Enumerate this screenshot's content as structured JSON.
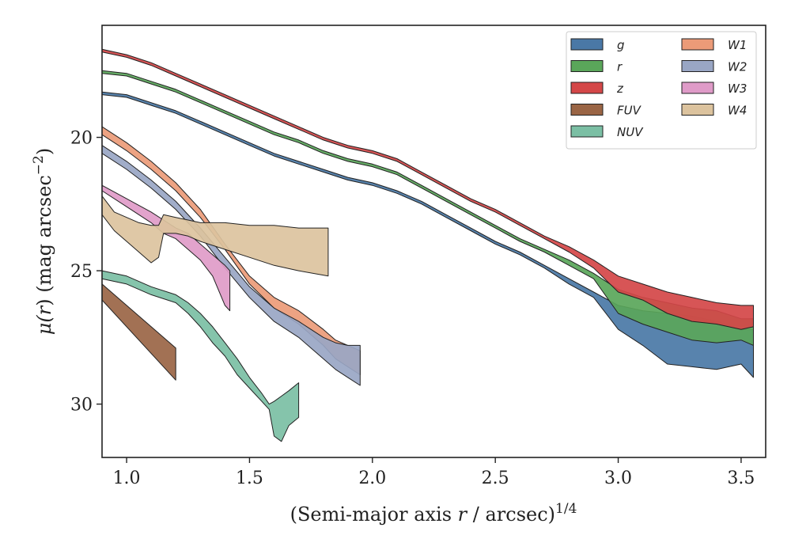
{
  "chart_data": {
    "type": "area",
    "xlabel_main": "(Semi-major axis ",
    "xlabel_var": "r",
    "xlabel_tail": " / arcsec)",
    "xlabel_sup": "1/4",
    "ylabel_main": "μ(",
    "ylabel_var": "r",
    "ylabel_tail": ") (mag arcsec",
    "ylabel_sup": "−2",
    "ylabel_close": ")",
    "xlim": [
      0.9,
      3.6
    ],
    "ylim": [
      32.0,
      15.8
    ],
    "y_inverted": true,
    "grid": false,
    "legend_position": "top-right",
    "legend_columns": 2,
    "xticks": [
      {
        "value": 1.0,
        "label": "1.0"
      },
      {
        "value": 1.5,
        "label": "1.5"
      },
      {
        "value": 2.0,
        "label": "2.0"
      },
      {
        "value": 2.5,
        "label": "2.5"
      },
      {
        "value": 3.0,
        "label": "3.0"
      },
      {
        "value": 3.5,
        "label": "3.5"
      }
    ],
    "yticks": [
      {
        "value": 20,
        "label": "20"
      },
      {
        "value": 25,
        "label": "25"
      },
      {
        "value": 30,
        "label": "30"
      }
    ],
    "series": [
      {
        "name": "FUV",
        "color": "#9a6545",
        "x": [
          0.9,
          1.2
        ],
        "lower": [
          25.5,
          27.9
        ],
        "upper": [
          26.1,
          29.1
        ]
      },
      {
        "name": "NUV",
        "color": "#7bbfa4",
        "x": [
          0.9,
          1.0,
          1.1,
          1.2,
          1.25,
          1.3,
          1.35,
          1.4,
          1.45,
          1.5,
          1.55,
          1.58,
          1.6,
          1.63,
          1.66,
          1.7
        ],
        "lower": [
          25.0,
          25.2,
          25.6,
          25.9,
          26.2,
          26.6,
          27.1,
          27.7,
          28.3,
          29.0,
          29.6,
          30.0,
          29.9,
          29.7,
          29.5,
          29.2
        ],
        "upper": [
          25.3,
          25.5,
          25.9,
          26.2,
          26.6,
          27.1,
          27.7,
          28.2,
          28.9,
          29.4,
          29.9,
          30.2,
          31.2,
          31.4,
          30.8,
          30.5
        ]
      },
      {
        "name": "W1",
        "color": "#eb9b78",
        "x": [
          0.9,
          1.0,
          1.1,
          1.2,
          1.3,
          1.4,
          1.5,
          1.6,
          1.7,
          1.8,
          1.85,
          1.9,
          1.95
        ],
        "lower": [
          19.6,
          20.2,
          20.9,
          21.7,
          22.7,
          24.0,
          25.2,
          26.0,
          26.5,
          27.2,
          27.6,
          27.8,
          28.0
        ],
        "upper": [
          19.9,
          20.5,
          21.2,
          22.0,
          23.0,
          24.2,
          25.5,
          26.4,
          27.0,
          27.8,
          28.3,
          28.6,
          28.9
        ]
      },
      {
        "name": "W2",
        "color": "#99a6c4",
        "x": [
          0.9,
          1.0,
          1.1,
          1.2,
          1.3,
          1.4,
          1.5,
          1.6,
          1.7,
          1.75,
          1.8,
          1.85,
          1.9,
          1.95
        ],
        "lower": [
          20.3,
          20.9,
          21.6,
          22.4,
          23.4,
          24.5,
          25.6,
          26.4,
          26.9,
          27.2,
          27.5,
          27.7,
          27.8,
          27.8
        ],
        "upper": [
          20.6,
          21.2,
          21.9,
          22.7,
          23.7,
          24.9,
          26.0,
          26.9,
          27.5,
          27.9,
          28.3,
          28.7,
          29.0,
          29.3
        ]
      },
      {
        "name": "W3",
        "color": "#df9bc8",
        "x": [
          0.9,
          1.0,
          1.1,
          1.15,
          1.2,
          1.25,
          1.3,
          1.35,
          1.4,
          1.42
        ],
        "lower": [
          21.8,
          22.3,
          22.8,
          23.1,
          23.4,
          23.6,
          24.0,
          24.4,
          24.8,
          25.0
        ],
        "upper": [
          22.0,
          22.6,
          23.2,
          23.6,
          23.8,
          24.2,
          24.6,
          25.2,
          26.3,
          26.5
        ]
      },
      {
        "name": "W4",
        "color": "#dcc39e",
        "x": [
          0.9,
          0.95,
          1.0,
          1.05,
          1.1,
          1.13,
          1.15,
          1.2,
          1.25,
          1.3,
          1.4,
          1.5,
          1.6,
          1.7,
          1.82
        ],
        "lower": [
          22.2,
          22.8,
          23.0,
          23.2,
          23.3,
          23.3,
          22.9,
          23.0,
          23.1,
          23.2,
          23.2,
          23.3,
          23.3,
          23.4,
          23.4
        ],
        "upper": [
          22.9,
          23.5,
          23.9,
          24.3,
          24.7,
          24.5,
          23.6,
          23.6,
          23.7,
          23.9,
          24.2,
          24.5,
          24.8,
          25.0,
          25.2
        ]
      },
      {
        "name": "g",
        "color": "#4a78a6",
        "x": [
          0.9,
          1.0,
          1.1,
          1.2,
          1.3,
          1.4,
          1.5,
          1.6,
          1.7,
          1.8,
          1.9,
          2.0,
          2.1,
          2.2,
          2.3,
          2.4,
          2.5,
          2.6,
          2.7,
          2.8,
          2.9,
          3.0,
          3.1,
          3.2,
          3.3,
          3.4,
          3.5,
          3.55
        ],
        "lower": [
          18.3,
          18.4,
          18.7,
          19.0,
          19.4,
          19.8,
          20.2,
          20.6,
          20.9,
          21.2,
          21.5,
          21.7,
          22.0,
          22.4,
          22.9,
          23.4,
          23.9,
          24.3,
          24.8,
          25.3,
          25.8,
          26.3,
          26.5,
          26.6,
          26.7,
          26.9,
          27.2,
          27.2
        ],
        "upper": [
          18.4,
          18.5,
          18.8,
          19.1,
          19.5,
          19.9,
          20.3,
          20.7,
          21.0,
          21.3,
          21.6,
          21.8,
          22.1,
          22.5,
          23.0,
          23.5,
          24.0,
          24.4,
          24.9,
          25.5,
          26.0,
          27.2,
          27.8,
          28.5,
          28.6,
          28.7,
          28.5,
          29.0
        ]
      },
      {
        "name": "r",
        "color": "#5aa65a",
        "x": [
          0.9,
          1.0,
          1.1,
          1.2,
          1.3,
          1.4,
          1.5,
          1.6,
          1.7,
          1.8,
          1.9,
          2.0,
          2.1,
          2.2,
          2.3,
          2.4,
          2.5,
          2.6,
          2.7,
          2.8,
          2.9,
          3.0,
          3.1,
          3.2,
          3.3,
          3.4,
          3.5,
          3.55
        ],
        "lower": [
          17.5,
          17.6,
          17.9,
          18.2,
          18.6,
          19.0,
          19.4,
          19.8,
          20.1,
          20.5,
          20.8,
          21.0,
          21.3,
          21.8,
          22.3,
          22.8,
          23.3,
          23.8,
          24.2,
          24.6,
          25.1,
          25.7,
          26.0,
          26.2,
          26.4,
          26.5,
          26.8,
          26.8
        ],
        "upper": [
          17.6,
          17.7,
          18.0,
          18.3,
          18.7,
          19.1,
          19.5,
          19.9,
          20.2,
          20.6,
          20.9,
          21.1,
          21.4,
          21.9,
          22.4,
          22.9,
          23.4,
          23.9,
          24.3,
          24.8,
          25.3,
          26.6,
          27.0,
          27.3,
          27.6,
          27.7,
          27.6,
          27.8
        ]
      },
      {
        "name": "z",
        "color": "#d44748",
        "x": [
          0.9,
          1.0,
          1.1,
          1.2,
          1.3,
          1.4,
          1.5,
          1.6,
          1.7,
          1.8,
          1.9,
          2.0,
          2.1,
          2.2,
          2.3,
          2.4,
          2.5,
          2.6,
          2.7,
          2.8,
          2.9,
          3.0,
          3.1,
          3.2,
          3.3,
          3.4,
          3.5,
          3.55
        ],
        "lower": [
          16.7,
          16.9,
          17.2,
          17.6,
          18.0,
          18.4,
          18.8,
          19.2,
          19.6,
          20.0,
          20.3,
          20.5,
          20.8,
          21.3,
          21.8,
          22.3,
          22.7,
          23.2,
          23.7,
          24.1,
          24.6,
          25.2,
          25.5,
          25.8,
          26.0,
          26.2,
          26.3,
          26.3
        ],
        "upper": [
          16.8,
          17.0,
          17.3,
          17.7,
          18.1,
          18.5,
          18.9,
          19.3,
          19.7,
          20.1,
          20.4,
          20.6,
          20.9,
          21.4,
          21.9,
          22.4,
          22.8,
          23.3,
          23.8,
          24.3,
          24.9,
          25.8,
          26.1,
          26.6,
          26.9,
          27.0,
          27.2,
          27.1
        ]
      }
    ],
    "legend": [
      {
        "name": "g",
        "color": "#4a78a6"
      },
      {
        "name": "r",
        "color": "#5aa65a"
      },
      {
        "name": "z",
        "color": "#d44748"
      },
      {
        "name": "FUV",
        "color": "#9a6545"
      },
      {
        "name": "NUV",
        "color": "#7bbfa4"
      },
      {
        "name": "W1",
        "color": "#eb9b78"
      },
      {
        "name": "W2",
        "color": "#99a6c4"
      },
      {
        "name": "W3",
        "color": "#df9bc8"
      },
      {
        "name": "W4",
        "color": "#dcc39e"
      }
    ]
  }
}
